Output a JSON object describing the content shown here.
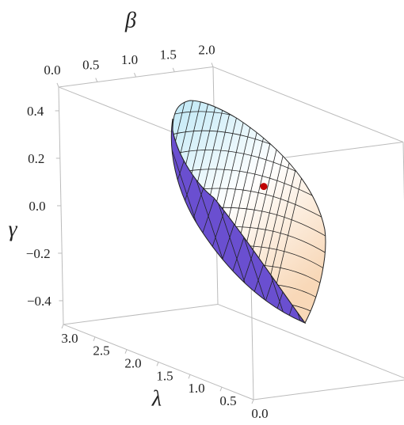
{
  "chart_data": {
    "type": "surface3d",
    "x_axis": {
      "label": "λ",
      "lim": [
        0,
        3
      ],
      "ticks": [
        {
          "value": 3,
          "label": "3.0"
        },
        2.5,
        {
          "value": 2,
          "label": "2.0"
        },
        1.5,
        {
          "value": 1,
          "label": "1.0"
        },
        0.5,
        {
          "value": 0,
          "label": "0.0"
        }
      ]
    },
    "y_axis": {
      "label": "β",
      "lim": [
        0,
        2
      ],
      "ticks": [
        {
          "value": 0,
          "label": "0.0"
        },
        0.5,
        {
          "value": 1,
          "label": "1.0"
        },
        1.5,
        {
          "value": 2,
          "label": "2.0"
        }
      ]
    },
    "z_axis": {
      "label": "γ",
      "lim": [
        -0.5,
        0.5
      ],
      "ticks": [
        0.4,
        0.2,
        {
          "value": 0,
          "label": "0.0"
        },
        {
          "value": -0.2,
          "label": "−0.2"
        },
        {
          "value": -0.4,
          "label": "−0.4"
        }
      ]
    },
    "points": [
      {
        "x": 1.0,
        "y": 1.0,
        "z": 0.25,
        "color": "#c00000"
      }
    ]
  }
}
